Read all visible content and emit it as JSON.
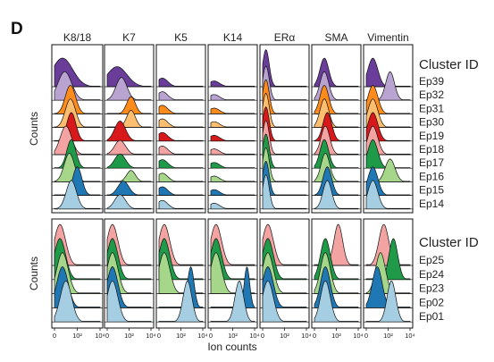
{
  "panel_label": "D",
  "colors": {
    "Ep39": "#6a3d9a",
    "Ep32": "#b9a3d1",
    "Ep31": "#ff8c1a",
    "Ep30": "#fdbf6f",
    "Ep19": "#d7191c",
    "Ep18": "#f4a3a3",
    "Ep17": "#1f9a48",
    "Ep16": "#a6d68a",
    "Ep15": "#1f78b4",
    "Ep14": "#a6cee3",
    "Ep25": "#f4a3a3",
    "Ep24": "#1f9a48",
    "Ep23": "#a6d68a",
    "Ep02": "#1f78b4",
    "Ep01": "#a6cee3"
  },
  "chart_data": [
    {
      "type": "ridgeline-histogram",
      "markers": [
        "K8/18",
        "K7",
        "K5",
        "K14",
        "ERα",
        "SMA",
        "Vimentin"
      ],
      "legend_title": "Cluster ID",
      "clusters": [
        "Ep39",
        "Ep32",
        "Ep31",
        "Ep30",
        "Ep19",
        "Ep18",
        "Ep17",
        "Ep16",
        "Ep15",
        "Ep14"
      ],
      "ylabel": "Counts",
      "xscale": "log",
      "xlim": [
        1,
        10000
      ],
      "peaks": {
        "Ep39": [
          [
            5,
            1.0,
            0.9
          ],
          [
            8,
            0.7,
            0.9
          ],
          [
            2,
            0.3,
            0.5
          ],
          [
            2,
            0.2,
            0.5
          ],
          [
            2,
            1.3,
            0.3
          ],
          [
            8,
            1.0,
            0.4
          ],
          [
            4,
            1.0,
            0.45
          ]
        ],
        "Ep32": [
          [
            8,
            1.0,
            0.6
          ],
          [
            20,
            0.8,
            0.5
          ],
          [
            2,
            0.3,
            0.5
          ],
          [
            2,
            0.2,
            0.5
          ],
          [
            2,
            1.2,
            0.3
          ],
          [
            8,
            1.0,
            0.4
          ],
          [
            150,
            1.0,
            0.4
          ]
        ],
        "Ep31": [
          [
            25,
            1.0,
            0.45
          ],
          [
            150,
            0.6,
            0.4
          ],
          [
            2,
            0.3,
            0.5
          ],
          [
            2,
            0.2,
            0.5
          ],
          [
            2,
            1.2,
            0.3
          ],
          [
            8,
            1.0,
            0.4
          ],
          [
            4,
            1.0,
            0.45
          ]
        ],
        "Ep30": [
          [
            25,
            1.0,
            0.45
          ],
          [
            150,
            0.6,
            0.4
          ],
          [
            2,
            0.3,
            0.5
          ],
          [
            2,
            0.2,
            0.5
          ],
          [
            2,
            1.2,
            0.3
          ],
          [
            8,
            1.0,
            0.4
          ],
          [
            4,
            1.0,
            0.45
          ]
        ],
        "Ep19": [
          [
            30,
            1.0,
            0.4
          ],
          [
            15,
            0.7,
            0.5
          ],
          [
            2,
            0.3,
            0.5
          ],
          [
            2,
            0.2,
            0.5
          ],
          [
            2,
            1.2,
            0.3
          ],
          [
            15,
            1.0,
            0.4
          ],
          [
            4,
            1.0,
            0.45
          ]
        ],
        "Ep18": [
          [
            10,
            1.0,
            0.5
          ],
          [
            15,
            0.5,
            0.5
          ],
          [
            2,
            0.3,
            0.5
          ],
          [
            2,
            0.2,
            0.5
          ],
          [
            2,
            1.2,
            0.3
          ],
          [
            10,
            1.0,
            0.4
          ],
          [
            4,
            1.0,
            0.45
          ]
        ],
        "Ep17": [
          [
            30,
            1.0,
            0.4
          ],
          [
            15,
            0.5,
            0.5
          ],
          [
            2,
            0.3,
            0.5
          ],
          [
            2,
            0.2,
            0.5
          ],
          [
            2,
            1.2,
            0.3
          ],
          [
            8,
            1.0,
            0.4
          ],
          [
            4,
            1.0,
            0.45
          ]
        ],
        "Ep16": [
          [
            20,
            1.0,
            0.45
          ],
          [
            150,
            0.4,
            0.4
          ],
          [
            2,
            0.3,
            0.5
          ],
          [
            2,
            0.2,
            0.5
          ],
          [
            2,
            1.2,
            0.3
          ],
          [
            10,
            1.0,
            0.4
          ],
          [
            150,
            0.8,
            0.45
          ]
        ],
        "Ep15": [
          [
            100,
            1.0,
            0.4
          ],
          [
            30,
            0.5,
            0.5
          ],
          [
            2,
            0.3,
            0.5
          ],
          [
            2,
            0.2,
            0.5
          ],
          [
            2,
            1.2,
            0.3
          ],
          [
            15,
            1.0,
            0.4
          ],
          [
            4,
            1.0,
            0.45
          ]
        ],
        "Ep14": [
          [
            30,
            1.0,
            0.45
          ],
          [
            15,
            0.5,
            0.5
          ],
          [
            2,
            0.3,
            0.5
          ],
          [
            2,
            0.2,
            0.5
          ],
          [
            2,
            1.2,
            0.3
          ],
          [
            15,
            1.0,
            0.4
          ],
          [
            4,
            1.0,
            0.45
          ]
        ]
      }
    },
    {
      "type": "ridgeline-histogram",
      "markers": [
        "K8/18",
        "K7",
        "K5",
        "K14",
        "ERα",
        "SMA",
        "Vimentin"
      ],
      "legend_title": "Cluster ID",
      "clusters": [
        "Ep25",
        "Ep24",
        "Ep23",
        "Ep02",
        "Ep01"
      ],
      "ylabel": "Counts",
      "xlabel": "Ion counts",
      "xscale": "log",
      "xlim": [
        1,
        10000
      ],
      "xticks": [
        "0",
        "10²",
        "10⁴"
      ],
      "peaks": {
        "Ep25": [
          [
            3,
            1.0,
            0.5
          ],
          [
            3,
            1.0,
            0.5
          ],
          [
            3,
            1.0,
            0.5
          ],
          [
            3,
            1.0,
            0.5
          ],
          [
            3,
            1.0,
            0.5
          ],
          [
            150,
            1.0,
            0.4
          ],
          [
            40,
            1.0,
            0.45
          ]
        ],
        "Ep24": [
          [
            3,
            1.0,
            0.5
          ],
          [
            3,
            1.0,
            0.5
          ],
          [
            3,
            1.0,
            0.5
          ],
          [
            3,
            1.0,
            0.5
          ],
          [
            3,
            1.0,
            0.5
          ],
          [
            10,
            1.0,
            0.45
          ],
          [
            300,
            1.0,
            0.4
          ]
        ],
        "Ep23": [
          [
            5,
            1.0,
            0.5
          ],
          [
            3,
            1.0,
            0.5
          ],
          [
            3,
            1.0,
            0.5
          ],
          [
            3,
            1.0,
            0.5
          ],
          [
            3,
            1.0,
            0.5
          ],
          [
            10,
            1.0,
            0.45
          ],
          [
            20,
            1.0,
            0.45
          ]
        ],
        "Ep02": [
          [
            5,
            1.0,
            0.5
          ],
          [
            3,
            1.0,
            0.5
          ],
          [
            800,
            1.0,
            0.3
          ],
          [
            2000,
            1.0,
            0.25
          ],
          [
            3,
            1.0,
            0.5
          ],
          [
            10,
            1.0,
            0.45
          ],
          [
            10,
            1.0,
            0.45
          ]
        ],
        "Ep01": [
          [
            10,
            1.0,
            0.5
          ],
          [
            3,
            1.0,
            0.5
          ],
          [
            400,
            1.0,
            0.4
          ],
          [
            400,
            1.0,
            0.4
          ],
          [
            3,
            1.0,
            0.5
          ],
          [
            10,
            1.0,
            0.45
          ],
          [
            200,
            1.0,
            0.4
          ]
        ]
      }
    }
  ]
}
